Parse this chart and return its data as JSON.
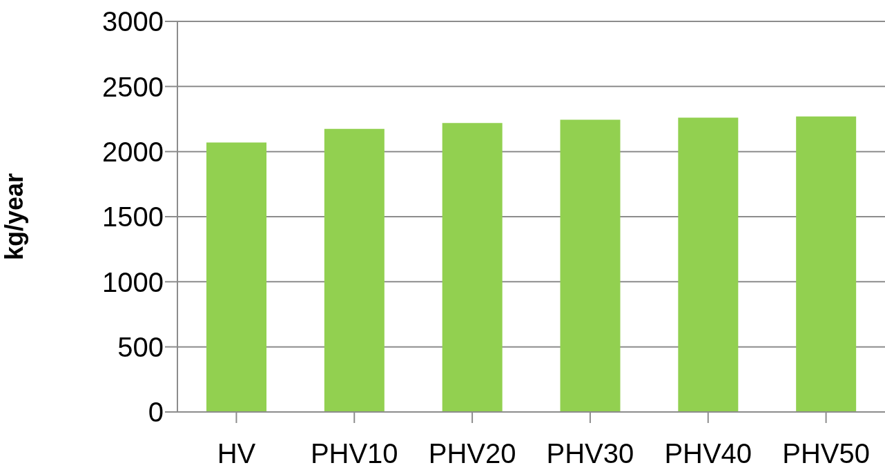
{
  "chart_data": {
    "type": "bar",
    "ylabel": "kg/year",
    "categories": [
      "HV",
      "PHV10",
      "PHV20",
      "PHV30",
      "PHV40",
      "PHV50"
    ],
    "values": [
      2070,
      2175,
      2220,
      2245,
      2260,
      2270
    ],
    "color": "#92d050",
    "ylim": [
      0,
      3000
    ],
    "yticks": [
      0,
      500,
      1000,
      1500,
      2000,
      2500,
      3000
    ],
    "grid": "y"
  }
}
